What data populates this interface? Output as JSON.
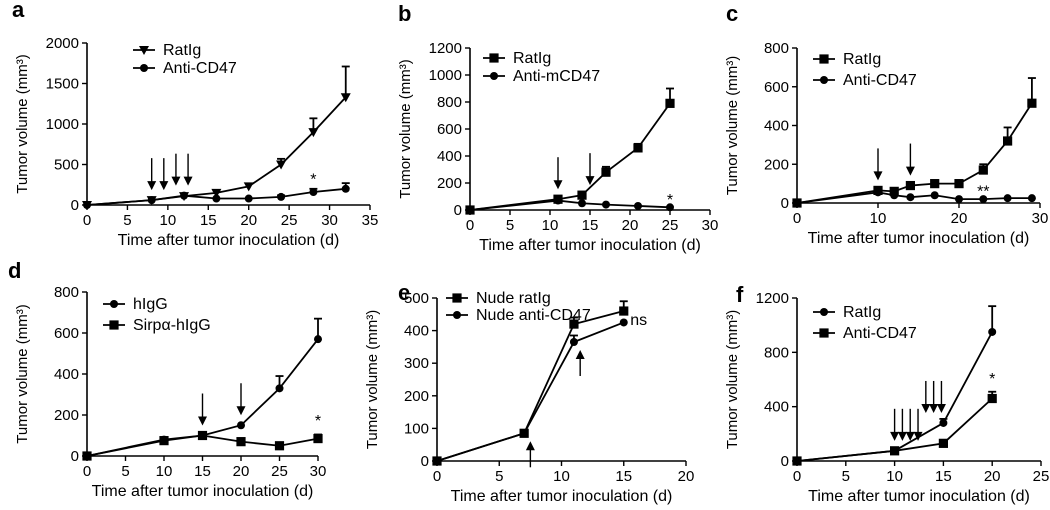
{
  "chart_data": [
    {
      "panel_label": "a",
      "type": "line",
      "xlabel": "Time after tumor inoculation (d)",
      "ylabel": "Tumor volume (mm³)",
      "xlim": [
        0,
        35
      ],
      "ylim": [
        0,
        2000
      ],
      "xticks": [
        0,
        5,
        10,
        15,
        20,
        25,
        30,
        35
      ],
      "yticks": [
        0,
        500,
        1000,
        1500,
        2000
      ],
      "series": [
        {
          "name": "RatIg",
          "marker": "tri-down",
          "x": [
            0,
            8,
            12,
            16,
            20,
            24,
            28,
            32
          ],
          "y": [
            0,
            60,
            110,
            150,
            230,
            500,
            900,
            1330
          ],
          "err": [
            0,
            0,
            0,
            30,
            0,
            70,
            170,
            380
          ]
        },
        {
          "name": "Anti-CD47",
          "marker": "circle",
          "x": [
            0,
            8,
            12,
            16,
            20,
            24,
            28,
            32
          ],
          "y": [
            0,
            60,
            115,
            80,
            80,
            100,
            160,
            200
          ],
          "err": [
            0,
            0,
            0,
            0,
            0,
            20,
            40,
            70
          ]
        }
      ],
      "arrows": [
        {
          "x": 8,
          "dir": "down"
        },
        {
          "x": 9.5,
          "dir": "down"
        },
        {
          "x": 11,
          "dir": "down"
        },
        {
          "x": 12.5,
          "dir": "down"
        }
      ],
      "annotations": [
        {
          "text": "*",
          "x": 28,
          "y": 330
        }
      ]
    },
    {
      "panel_label": "b",
      "type": "line",
      "xlabel": "Time after tumor inoculation (d)",
      "ylabel": "Tumor volume (mm³)",
      "xlim": [
        0,
        30
      ],
      "ylim": [
        0,
        1200
      ],
      "xticks": [
        0,
        5,
        10,
        15,
        20,
        25,
        30
      ],
      "yticks": [
        0,
        200,
        400,
        600,
        800,
        1000,
        1200
      ],
      "series": [
        {
          "name": "RatIg",
          "marker": "square",
          "x": [
            0,
            11,
            14,
            17,
            21,
            25
          ],
          "y": [
            0,
            80,
            110,
            280,
            460,
            790
          ],
          "err": [
            0,
            0,
            15,
            40,
            30,
            110
          ]
        },
        {
          "name": "Anti-mCD47",
          "marker": "circle",
          "x": [
            0,
            11,
            14,
            17,
            21,
            25
          ],
          "y": [
            0,
            70,
            50,
            40,
            30,
            20
          ],
          "err": [
            0,
            0,
            0,
            0,
            0,
            0
          ]
        }
      ],
      "arrows": [
        {
          "x": 11,
          "dir": "down"
        },
        {
          "x": 15,
          "dir": "down"
        }
      ],
      "annotations": [
        {
          "text": "*",
          "x": 25,
          "y": 80
        }
      ]
    },
    {
      "panel_label": "c",
      "type": "line",
      "xlabel": "Time after tumor inoculation (d)",
      "ylabel": "Tumor volume (mm³)",
      "xlim": [
        0,
        30
      ],
      "ylim": [
        0,
        800
      ],
      "xticks": [
        0,
        10,
        20,
        30
      ],
      "yticks": [
        0,
        200,
        400,
        600,
        800
      ],
      "series": [
        {
          "name": "RatIg",
          "marker": "square",
          "x": [
            0,
            10,
            12,
            14,
            17,
            20,
            23,
            26,
            29
          ],
          "y": [
            0,
            65,
            60,
            90,
            100,
            100,
            170,
            320,
            515
          ],
          "err": [
            0,
            0,
            0,
            0,
            0,
            0,
            30,
            70,
            130
          ]
        },
        {
          "name": "Anti-CD47",
          "marker": "circle",
          "x": [
            0,
            10,
            12,
            14,
            17,
            20,
            23,
            26,
            29
          ],
          "y": [
            0,
            55,
            40,
            30,
            40,
            20,
            20,
            25,
            25
          ],
          "err": [
            0,
            0,
            0,
            0,
            0,
            0,
            0,
            0,
            0
          ]
        }
      ],
      "arrows": [
        {
          "x": 10,
          "dir": "down"
        },
        {
          "x": 14,
          "dir": "down"
        }
      ],
      "annotations": [
        {
          "text": "**",
          "x": 23,
          "y": 65
        }
      ]
    },
    {
      "panel_label": "d",
      "type": "line",
      "xlabel": "Time after tumor inoculation (d)",
      "ylabel": "Tumor volume (mm³)",
      "xlim": [
        0,
        30
      ],
      "ylim": [
        0,
        800
      ],
      "xticks": [
        0,
        5,
        10,
        15,
        20,
        25,
        30
      ],
      "yticks": [
        0,
        200,
        400,
        600,
        800
      ],
      "series": [
        {
          "name": "hIgG",
          "marker": "circle",
          "x": [
            0,
            10,
            15,
            20,
            25,
            30
          ],
          "y": [
            0,
            80,
            100,
            150,
            330,
            570
          ],
          "err": [
            0,
            0,
            0,
            0,
            60,
            100
          ]
        },
        {
          "name": "Sirpα-hIgG",
          "marker": "square",
          "x": [
            0,
            10,
            15,
            20,
            25,
            30
          ],
          "y": [
            0,
            75,
            100,
            70,
            50,
            85
          ],
          "err": [
            0,
            0,
            0,
            0,
            0,
            20
          ]
        }
      ],
      "arrows": [
        {
          "x": 15,
          "dir": "down"
        },
        {
          "x": 20,
          "dir": "down"
        }
      ],
      "annotations": [
        {
          "text": "*",
          "x": 30,
          "y": 175
        }
      ]
    },
    {
      "panel_label": "e",
      "type": "line",
      "xlabel": "Time after tumor inoculation (d)",
      "ylabel": "Tumor volume (mm³)",
      "xlim": [
        0,
        20
      ],
      "ylim": [
        0,
        500
      ],
      "xticks": [
        0,
        5,
        10,
        15,
        20
      ],
      "yticks": [
        0,
        100,
        200,
        300,
        400,
        500
      ],
      "series": [
        {
          "name": "Nude ratIg",
          "marker": "square",
          "x": [
            0,
            7,
            11,
            15
          ],
          "y": [
            0,
            85,
            420,
            460
          ],
          "err": [
            0,
            0,
            20,
            30
          ]
        },
        {
          "name": "Nude anti-CD47",
          "marker": "circle",
          "x": [
            0,
            7,
            11,
            15
          ],
          "y": [
            0,
            85,
            365,
            425
          ],
          "err": [
            0,
            0,
            20,
            0
          ]
        }
      ],
      "arrows": [
        {
          "x": 7.5,
          "dir": "up"
        },
        {
          "x": 11.5,
          "dir": "up"
        }
      ],
      "annotations": [
        {
          "text": "ns",
          "x": 16.2,
          "y": 435
        }
      ]
    },
    {
      "panel_label": "f",
      "type": "line",
      "xlabel": "Time after tumor inoculation (d)",
      "ylabel": "Tumor volume (mm³)",
      "xlim": [
        0,
        25
      ],
      "ylim": [
        0,
        1200
      ],
      "xticks": [
        0,
        5,
        10,
        15,
        20,
        25
      ],
      "yticks": [
        0,
        400,
        800,
        1200
      ],
      "series": [
        {
          "name": "RatIg",
          "marker": "circle",
          "x": [
            0,
            10,
            15,
            20
          ],
          "y": [
            0,
            75,
            280,
            950
          ],
          "err": [
            0,
            0,
            30,
            190
          ]
        },
        {
          "name": "Anti-CD47",
          "marker": "square",
          "x": [
            0,
            10,
            15,
            20
          ],
          "y": [
            0,
            75,
            130,
            460
          ],
          "err": [
            0,
            0,
            0,
            50
          ]
        }
      ],
      "arrows": [
        {
          "x": 10,
          "dir": "down"
        },
        {
          "x": 10.8,
          "dir": "down"
        },
        {
          "x": 11.6,
          "dir": "down"
        },
        {
          "x": 12.4,
          "dir": "down"
        },
        {
          "x": 13.2,
          "dir": "down"
        },
        {
          "x": 14,
          "dir": "down"
        },
        {
          "x": 14.8,
          "dir": "down"
        }
      ],
      "annotations": [
        {
          "text": "*",
          "x": 20,
          "y": 610
        }
      ]
    }
  ]
}
